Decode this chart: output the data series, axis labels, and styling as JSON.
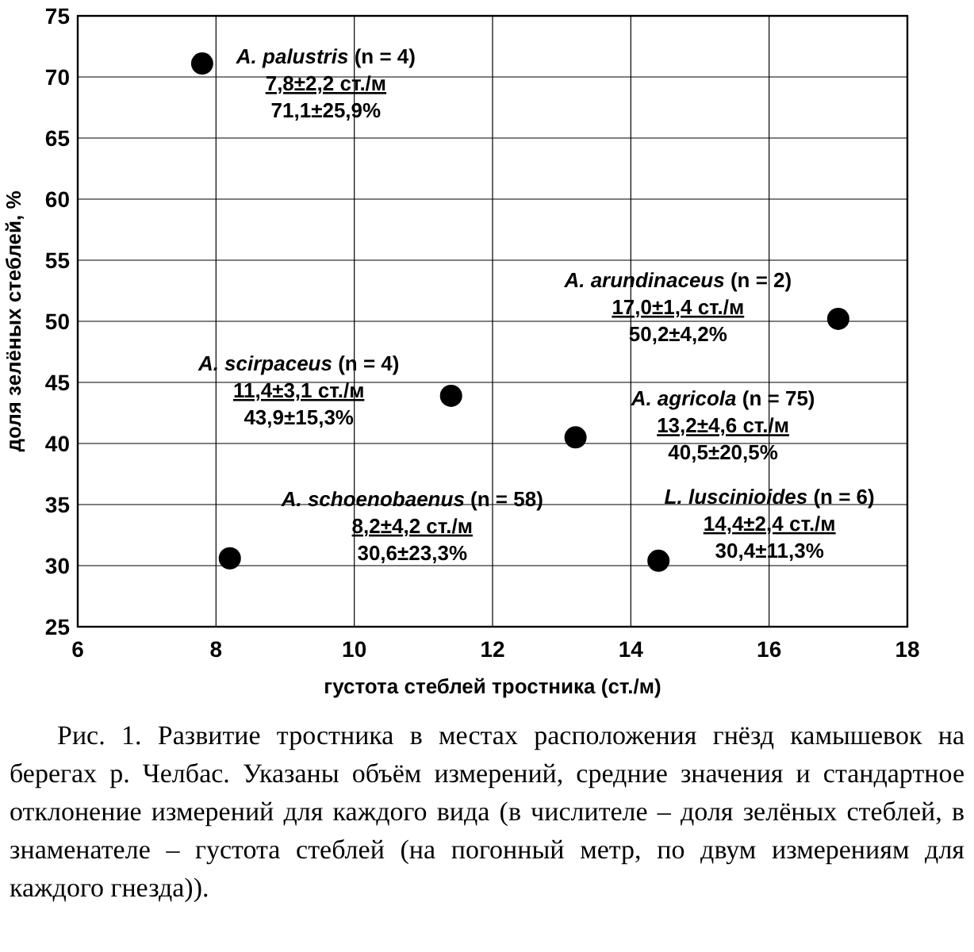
{
  "chart_data": {
    "type": "scatter",
    "xlabel": "густота стеблей тростника (ст./м)",
    "ylabel": "доля зелёных стеблей, %",
    "x": [
      7.8,
      17.0,
      11.4,
      13.2,
      8.2,
      14.4
    ],
    "series": [
      {
        "color": "#000000",
        "values": [
          71.1,
          50.2,
          43.9,
          40.5,
          30.6,
          30.4
        ]
      }
    ],
    "xlim": [
      6,
      18
    ],
    "xticks": [
      6,
      8,
      10,
      12,
      14,
      16,
      18
    ],
    "ylim": [
      25,
      75
    ],
    "yticks": [
      25,
      30,
      35,
      40,
      45,
      50,
      55,
      60,
      65,
      70,
      75
    ],
    "grid": true,
    "marker": "circle",
    "annotations": [
      {
        "text": "A. palustris (n = 4)\n7,8±2,2 ст./м\n71,1±25,9%",
        "x": 7.8,
        "y": 71.1
      },
      {
        "text": "A. arundinaceus (n = 2)\n17,0±1,4 ст./м\n50,2±4,2%",
        "x": 17.0,
        "y": 50.2
      },
      {
        "text": "A. scirpaceus (n = 4)\n11,4±3,1 ст./м\n43,9±15,3%",
        "x": 11.4,
        "y": 43.9
      },
      {
        "text": "A. agricola (n = 75)\n13,2±4,6 ст./м\n40,5±20,5%",
        "x": 13.2,
        "y": 40.5
      },
      {
        "text": "A. schoenobaenus (n = 58)\n8,2±4,2 ст./м\n30,6±23,3%",
        "x": 8.2,
        "y": 30.6
      },
      {
        "text": "L. luscinioides (n = 6)\n14,4±2,4 ст./м\n30,4±11,3%",
        "x": 14.4,
        "y": 30.4
      },
      "Рис. 1. Развитие тростника в местах расположения гнёзд камышевок на берегах р. Челбас. Указаны объём измерений, средние значения и стандартное отклонение измерений для каждого вида (в числителе – доля зелёных стеблей, в знаменателе – густота стеблей (на погонный метр, по двум измерениям для каждого гнезда))."
    ]
  }
}
